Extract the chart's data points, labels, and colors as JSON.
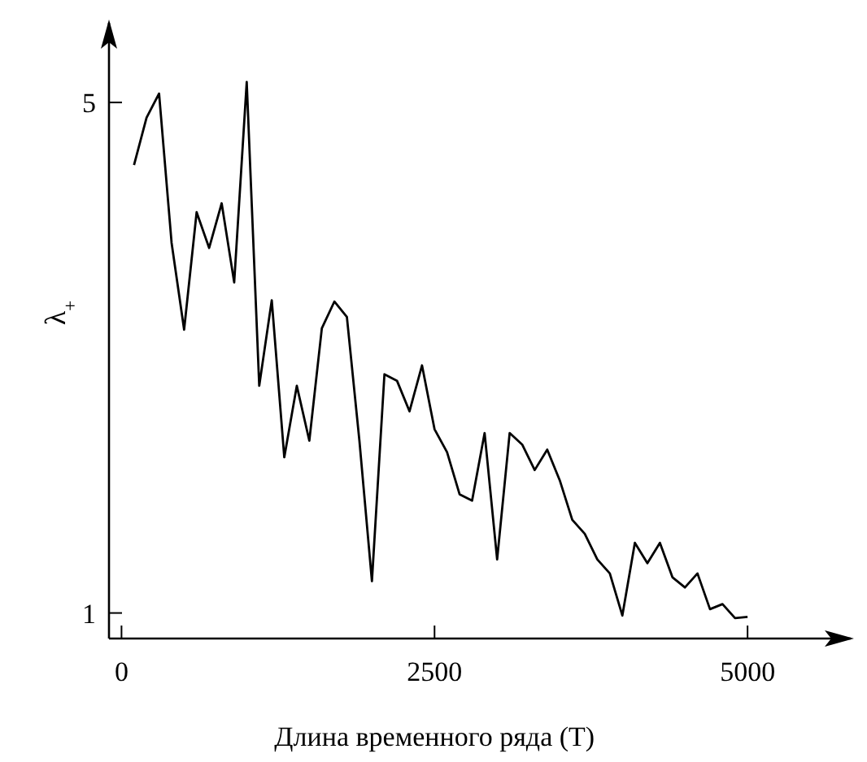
{
  "chart_data": {
    "type": "line",
    "xlabel": "Длина временного ряда (T)",
    "ylabel": "λ$_{+}$",
    "x": [
      100,
      200,
      300,
      400,
      500,
      600,
      700,
      800,
      900,
      1000,
      1100,
      1200,
      1300,
      1400,
      1500,
      1600,
      1700,
      1800,
      1900,
      2000,
      2100,
      2200,
      2300,
      2400,
      2500,
      2600,
      2700,
      2800,
      2900,
      3000,
      3100,
      3200,
      3300,
      3400,
      3500,
      3600,
      3700,
      3800,
      3900,
      4000,
      4100,
      4200,
      4300,
      4400,
      4500,
      4600,
      4700,
      4800,
      4900,
      5000
    ],
    "series": [
      {
        "color": "#000000",
        "values": [
          4.51,
          4.88,
          5.07,
          3.9,
          3.22,
          4.14,
          3.86,
          4.21,
          3.59,
          5.16,
          2.78,
          3.45,
          2.22,
          2.78,
          2.35,
          3.23,
          3.44,
          3.32,
          2.35,
          1.25,
          2.87,
          2.82,
          2.58,
          2.94,
          2.44,
          2.26,
          1.93,
          1.88,
          2.41,
          1.42,
          2.41,
          2.32,
          2.12,
          2.28,
          2.04,
          1.73,
          1.62,
          1.42,
          1.31,
          0.98,
          1.55,
          1.39,
          1.55,
          1.28,
          1.2,
          1.31,
          1.03,
          1.07,
          0.96,
          0.97
        ]
      }
    ],
    "xlim": [
      -100,
      5850
    ],
    "ylim": [
      0.8,
      5.65
    ],
    "xticks": [
      0,
      2500,
      5000
    ],
    "yticks": [
      1,
      5
    ],
    "grid": false,
    "line_style": "solid",
    "marker": "none"
  }
}
